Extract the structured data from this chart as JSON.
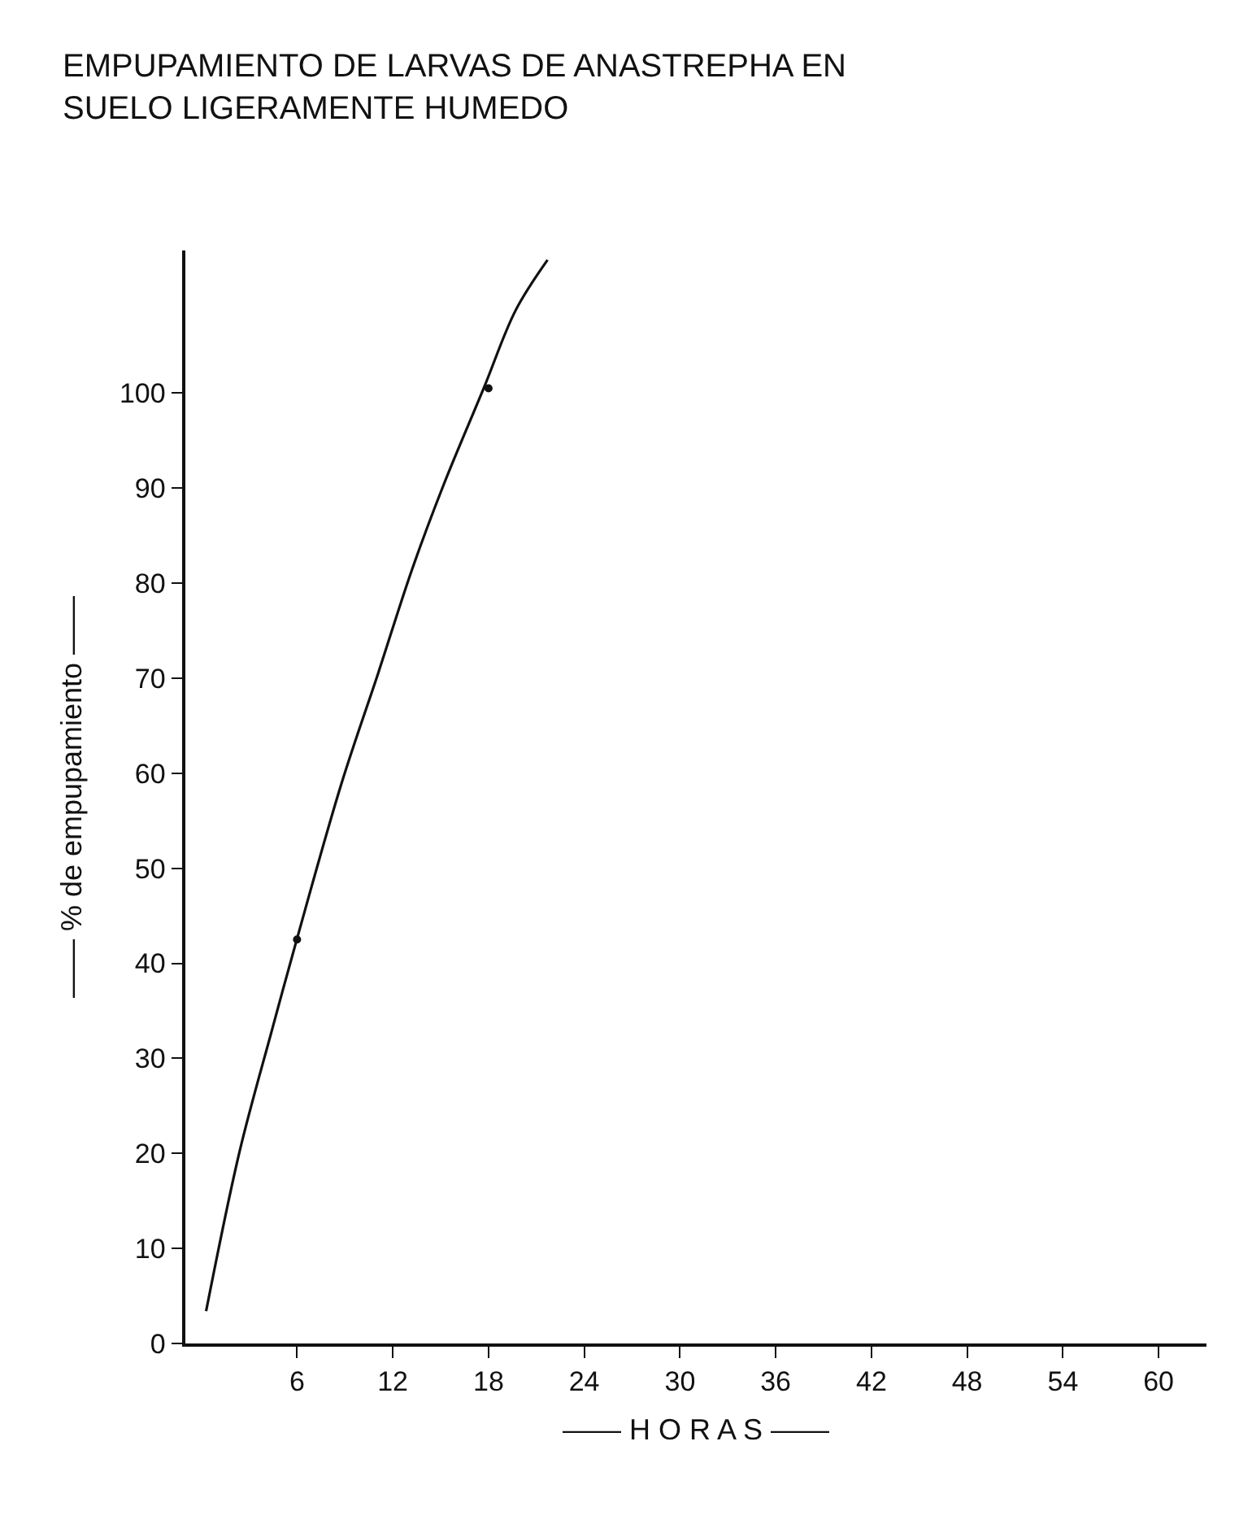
{
  "chart_data": {
    "type": "line",
    "title": "EMPUPAMIENTO DE LARVAS DE ANASTREPHA EN\nSUELO LIGERAMENTE HUMEDO",
    "xlabel": "—— H O R A S ——",
    "ylabel": "—— % de empupamiento ——",
    "xlim": [
      -1,
      63
    ],
    "ylim": [
      0,
      115
    ],
    "xticks": [
      6,
      12,
      18,
      24,
      30,
      36,
      42,
      48,
      54,
      60
    ],
    "yticks": [
      0,
      10,
      20,
      30,
      40,
      50,
      60,
      70,
      80,
      90,
      100
    ],
    "series": [
      {
        "color": "#111111",
        "marker": "none",
        "line_style": "solid",
        "x": [
          0.3,
          2.4,
          4.4,
          6,
          8.8,
          11.1,
          13.2,
          15.2,
          17.7,
          19.7,
          21.7
        ],
        "values": [
          3.4,
          20.2,
          32.8,
          42.6,
          59,
          70.6,
          81.4,
          90.4,
          100.5,
          108.7,
          114
        ]
      },
      {
        "type": "scatter",
        "color": "#111111",
        "marker": "circle",
        "x": [
          6,
          18
        ],
        "values": [
          42.5,
          100.5
        ]
      }
    ]
  }
}
